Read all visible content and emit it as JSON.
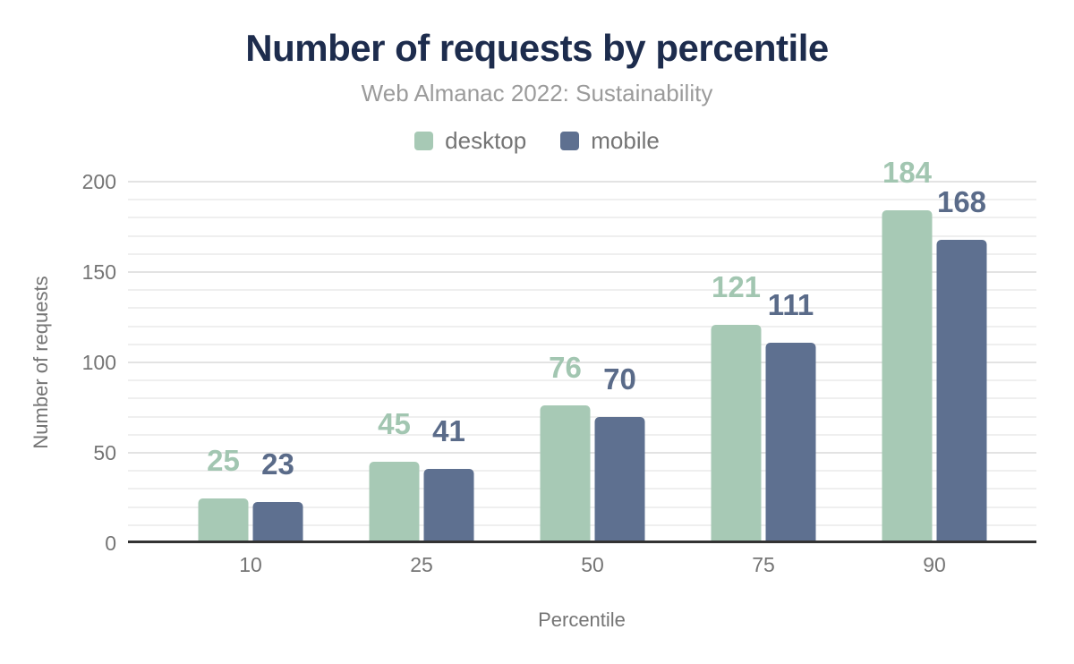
{
  "chart_data": {
    "type": "bar",
    "title": "Number of requests by percentile",
    "subtitle": "Web Almanac 2022: Sustainability",
    "xlabel": "Percentile",
    "ylabel": "Number of requests",
    "categories": [
      "10",
      "25",
      "50",
      "75",
      "90"
    ],
    "series": [
      {
        "name": "desktop",
        "color": "#a7c9b5",
        "label_color": "#a2c6b1",
        "values": [
          25,
          45,
          76,
          121,
          184
        ]
      },
      {
        "name": "mobile",
        "color": "#5e7090",
        "label_color": "#5a6b89",
        "values": [
          23,
          41,
          70,
          111,
          168
        ]
      }
    ],
    "ylim": [
      0,
      200
    ],
    "yticks": [
      0,
      50,
      100,
      150,
      200
    ],
    "grid_minor_step": 10,
    "grid": true,
    "legend_position": "top",
    "value_labels": true
  },
  "colors": {
    "title": "#1d2c4d",
    "subtitle": "#9b9b9b",
    "axis_text": "#757575",
    "grid_minor": "#efefef",
    "grid_major": "#e3e3e3",
    "baseline": "#333333",
    "background": "#ffffff"
  }
}
